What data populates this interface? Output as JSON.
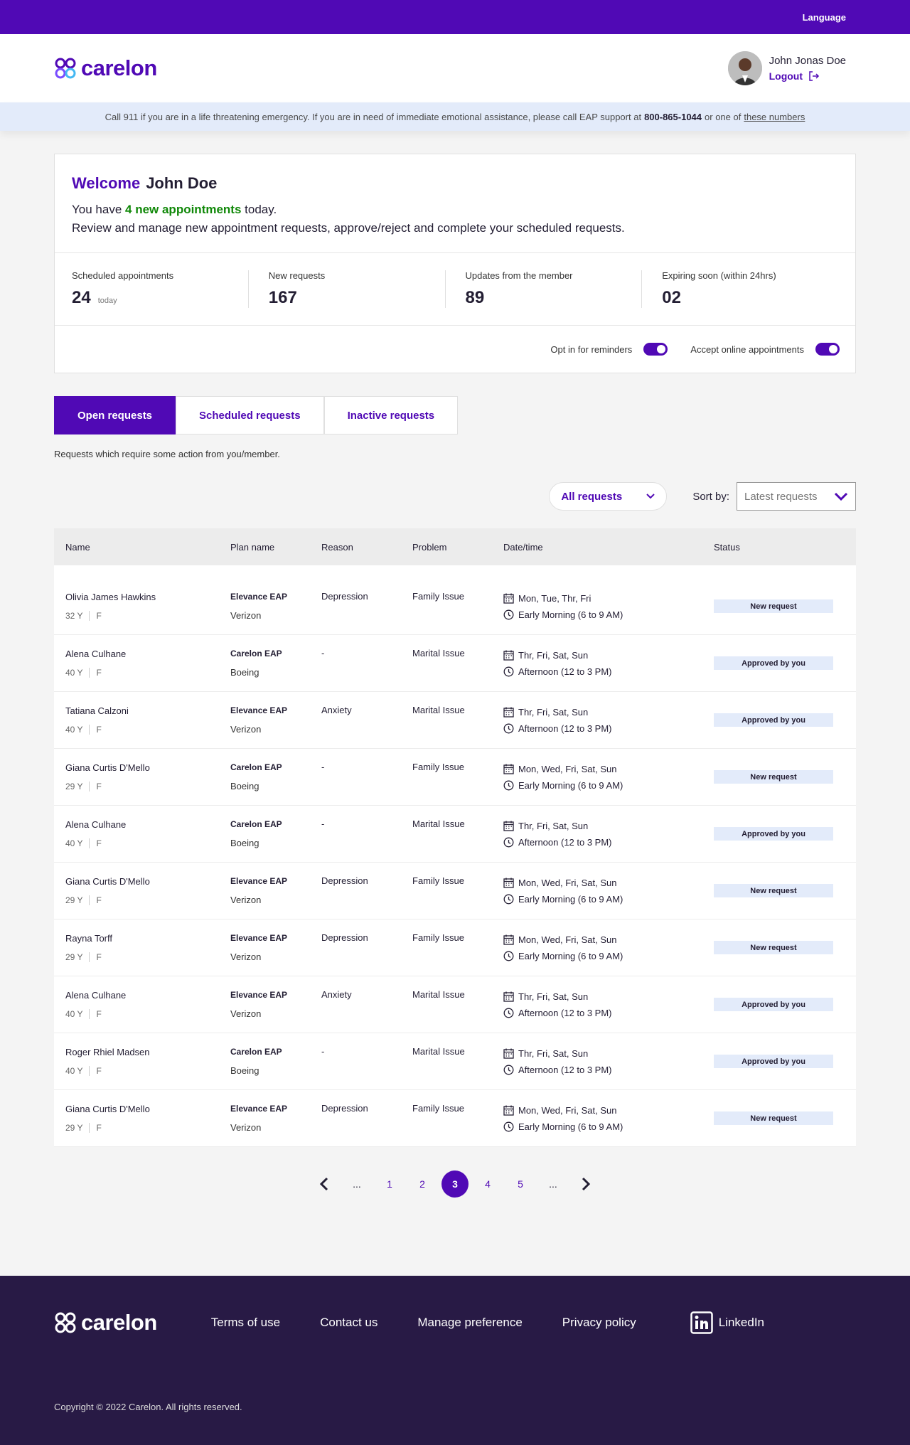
{
  "topbar": {
    "language": "Language"
  },
  "header": {
    "logo_text": "carelon",
    "user_name": "John Jonas Doe",
    "logout": "Logout"
  },
  "emergency": {
    "text_before": "Call 911 if you are in a life threatening emergency. If you are in need of immediate emotional assistance, please call EAP support at",
    "phone": "800-865-1044",
    "text_after": "or one of",
    "link": "these numbers"
  },
  "welcome": {
    "welcome_word": "Welcome",
    "name": "John Doe",
    "line1_before": "You have",
    "line1_highlight": "4 new appointments",
    "line1_after": "today.",
    "line2": "Review and manage new appointment requests, approve/reject and complete your scheduled requests."
  },
  "stats": [
    {
      "label": "Scheduled appointments",
      "value": "24",
      "sub": "today"
    },
    {
      "label": "New requests",
      "value": "167",
      "sub": ""
    },
    {
      "label": "Updates from the member",
      "value": "89",
      "sub": ""
    },
    {
      "label": "Expiring soon (within 24hrs)",
      "value": "02",
      "sub": ""
    }
  ],
  "toggles": {
    "reminders": "Opt in for reminders",
    "online": "Accept online appointments"
  },
  "tabs": {
    "open": "Open requests",
    "scheduled": "Scheduled requests",
    "inactive": "Inactive requests",
    "description": "Requests which require some action from you/member."
  },
  "filters": {
    "filter_value": "All requests",
    "sort_label": "Sort by:",
    "sort_value": "Latest requests"
  },
  "table": {
    "headers": {
      "name": "Name",
      "plan": "Plan name",
      "reason": "Reason",
      "problem": "Problem",
      "date": "Date/time",
      "status": "Status"
    },
    "rows": [
      {
        "name": "Olivia James Hawkins",
        "age": "32 Y",
        "gender": "F",
        "plan": "Elevance EAP",
        "org": "Verizon",
        "reason": "Depression",
        "problem": "Family Issue",
        "days": "Mon, Tue, Thr, Fri",
        "time": "Early Morning (6 to 9 AM)",
        "status": "New request"
      },
      {
        "name": "Alena Culhane",
        "age": "40 Y",
        "gender": "F",
        "plan": "Carelon EAP",
        "org": "Boeing",
        "reason": "-",
        "problem": "Marital Issue",
        "days": "Thr, Fri, Sat, Sun",
        "time": "Afternoon (12 to 3 PM)",
        "status": "Approved by you"
      },
      {
        "name": "Tatiana Calzoni",
        "age": "40 Y",
        "gender": "F",
        "plan": "Elevance EAP",
        "org": "Verizon",
        "reason": "Anxiety",
        "problem": "Marital Issue",
        "days": "Thr, Fri, Sat, Sun",
        "time": "Afternoon (12 to 3 PM)",
        "status": "Approved by you"
      },
      {
        "name": "Giana Curtis D'Mello",
        "age": "29 Y",
        "gender": "F",
        "plan": "Carelon EAP",
        "org": "Boeing",
        "reason": "-",
        "problem": "Family Issue",
        "days": "Mon, Wed, Fri, Sat, Sun",
        "time": "Early Morning (6 to 9 AM)",
        "status": "New request"
      },
      {
        "name": "Alena Culhane",
        "age": "40 Y",
        "gender": "F",
        "plan": "Carelon EAP",
        "org": "Boeing",
        "reason": "-",
        "problem": "Marital Issue",
        "days": "Thr, Fri, Sat, Sun",
        "time": "Afternoon (12 to 3 PM)",
        "status": "Approved by you"
      },
      {
        "name": "Giana Curtis D'Mello",
        "age": "29 Y",
        "gender": "F",
        "plan": "Elevance EAP",
        "org": "Verizon",
        "reason": "Depression",
        "problem": "Family Issue",
        "days": "Mon, Wed, Fri, Sat, Sun",
        "time": "Early Morning (6 to 9 AM)",
        "status": "New request"
      },
      {
        "name": "Rayna Torff",
        "age": "29 Y",
        "gender": "F",
        "plan": "Elevance EAP",
        "org": "Verizon",
        "reason": "Depression",
        "problem": "Family Issue",
        "days": "Mon, Wed, Fri, Sat, Sun",
        "time": "Early Morning (6 to 9 AM)",
        "status": "New request"
      },
      {
        "name": "Alena Culhane",
        "age": "40 Y",
        "gender": "F",
        "plan": "Elevance EAP",
        "org": "Verizon",
        "reason": "Anxiety",
        "problem": "Marital Issue",
        "days": "Thr, Fri, Sat, Sun",
        "time": "Afternoon (12 to 3 PM)",
        "status": "Approved by you"
      },
      {
        "name": "Roger Rhiel Madsen",
        "age": "40 Y",
        "gender": "F",
        "plan": "Carelon EAP",
        "org": "Boeing",
        "reason": "-",
        "problem": "Marital Issue",
        "days": "Thr, Fri, Sat, Sun",
        "time": "Afternoon (12 to 3 PM)",
        "status": "Approved by you"
      },
      {
        "name": "Giana Curtis D'Mello",
        "age": "29 Y",
        "gender": "F",
        "plan": "Elevance EAP",
        "org": "Verizon",
        "reason": "Depression",
        "problem": "Family Issue",
        "days": "Mon, Wed, Fri, Sat, Sun",
        "time": "Early Morning (6 to 9 AM)",
        "status": "New request"
      }
    ]
  },
  "pagination": {
    "items": [
      "...",
      "1",
      "2",
      "3",
      "4",
      "5",
      "..."
    ],
    "active": "3"
  },
  "footer": {
    "logo_text": "carelon",
    "links": [
      "Terms of use",
      "Contact us",
      "Manage preference",
      "Privacy policy"
    ],
    "linkedin": "LinkedIn",
    "copyright": "Copyright © 2022 Carelon. All rights reserved."
  },
  "colors": {
    "brand": "#5009b5",
    "highlight_green": "#108808",
    "footer_bg": "#281a45",
    "badge_bg": "#e3ebfa"
  }
}
